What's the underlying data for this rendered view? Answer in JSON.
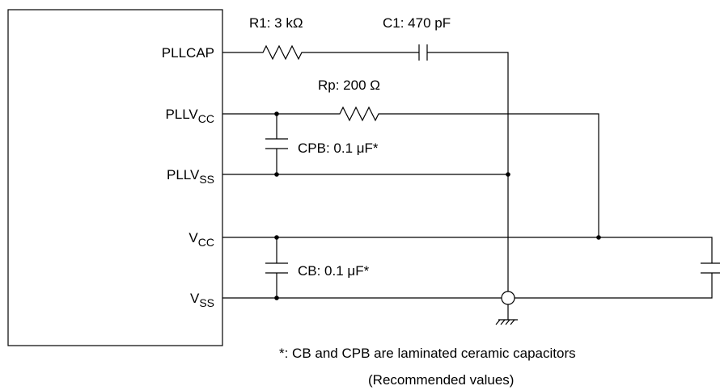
{
  "pins": [
    {
      "name": "PLLCAP"
    },
    {
      "name": "PLLV",
      "sub": "CC"
    },
    {
      "name": "PLLV",
      "sub": "SS"
    },
    {
      "name": "V",
      "sub": "CC"
    },
    {
      "name": "V",
      "sub": "SS"
    }
  ],
  "components": {
    "r1": "R1: 3 kΩ",
    "c1": "C1: 470 pF",
    "rp": "Rp: 200 Ω",
    "cpb": "CPB: 0.1 μF*",
    "cb": "CB: 0.1 μF*"
  },
  "notes": [
    "*:  CB and CPB are laminated ceramic capacitors",
    "(Recommended values)"
  ]
}
